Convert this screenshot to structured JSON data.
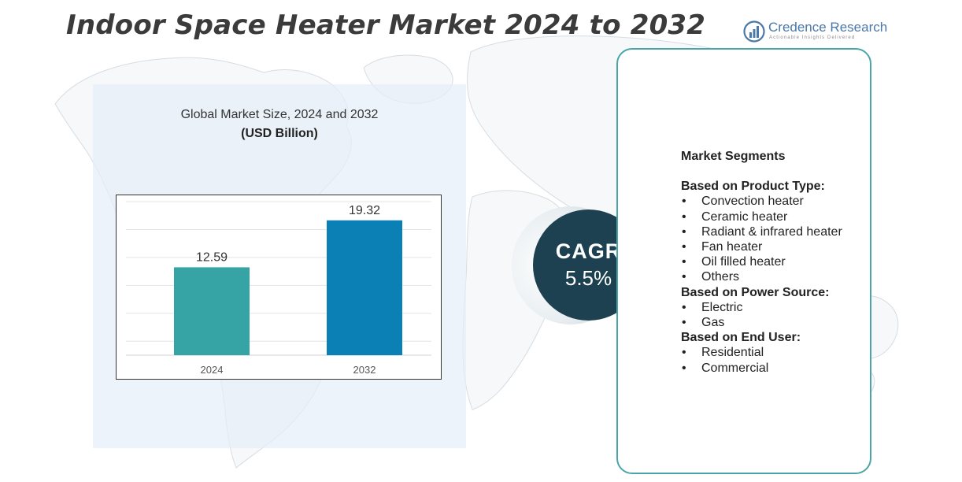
{
  "title": "Indoor Space Heater Market 2024 to 2032",
  "brand": {
    "name": "Credence Research",
    "tagline": "Actionable Insights Delivered"
  },
  "chart_data": {
    "type": "bar",
    "title": "Global Market Size,  2024 and 2032",
    "subtitle": "(USD Billion)",
    "categories": [
      "2024",
      "2032"
    ],
    "values": [
      12.59,
      19.32
    ],
    "data_labels": [
      "12.59",
      "19.32"
    ],
    "colors": [
      "#36a3a4",
      "#0b80b4"
    ],
    "ylim": [
      0,
      22
    ],
    "grid": true,
    "xlabel": "",
    "ylabel": ""
  },
  "cagr": {
    "label": "CAGR",
    "value": "5.5%"
  },
  "segments": {
    "heading": "Market Segments",
    "groups": [
      {
        "title": "Based on Product Type:",
        "items": [
          "Convection heater",
          "Ceramic heater",
          "Radiant & infrared heater",
          "Fan heater",
          "Oil filled  heater",
          "Others"
        ]
      },
      {
        "title": "Based on Power Source:",
        "items": [
          "Electric",
          "Gas"
        ]
      },
      {
        "title": "Based on End User:",
        "items": [
          "Residential",
          "Commercial"
        ]
      }
    ]
  },
  "colors": {
    "title": "#3b3b3b",
    "panel_border": "#4aa6a6",
    "cagr_circle": "#1d4150",
    "left_panel": "#e4eef8",
    "brand": "#4a78a8"
  }
}
